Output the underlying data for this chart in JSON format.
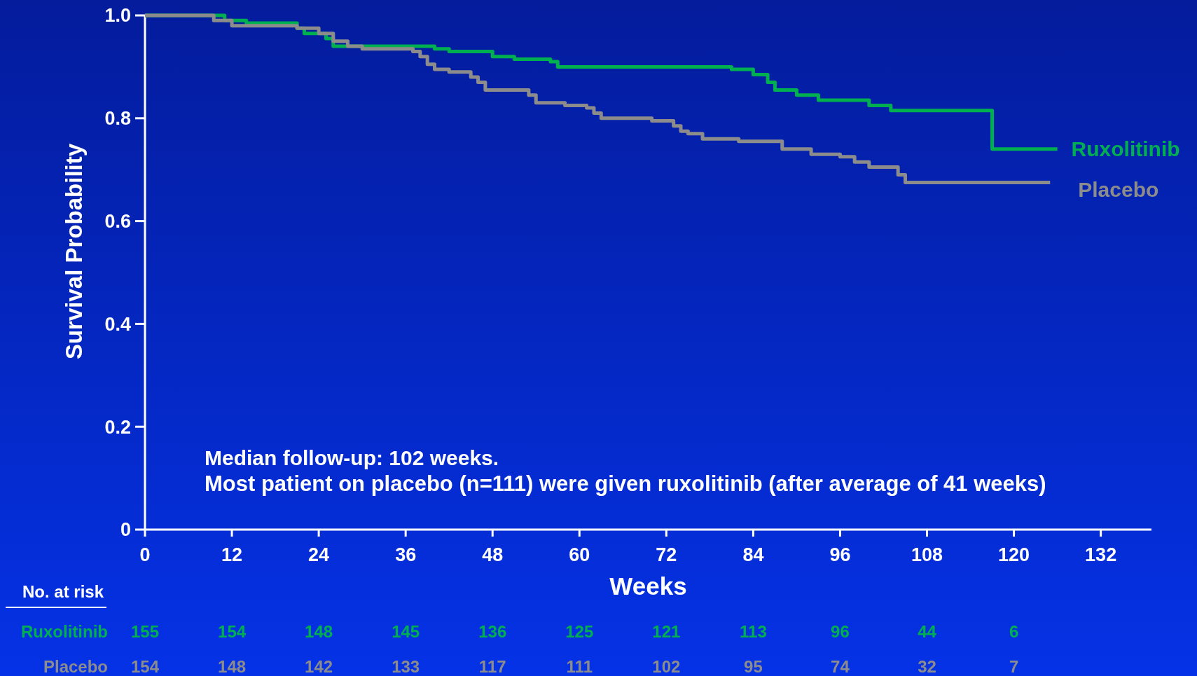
{
  "chart_data": {
    "type": "step",
    "xlabel": "Weeks",
    "ylabel": "Survival Probability",
    "xlim": [
      0,
      139
    ],
    "xticks": [
      0,
      12,
      24,
      36,
      48,
      60,
      72,
      84,
      96,
      108,
      120,
      132
    ],
    "ylim": [
      0,
      1
    ],
    "yticks": [
      {
        "value": 0,
        "label": "0"
      },
      0.2,
      0.4,
      0.6,
      0.8,
      {
        "value": 1,
        "label": "1.0"
      }
    ],
    "grid": false,
    "marker": "none",
    "line_style": "solid",
    "series": [
      {
        "name": "Ruxolitinib",
        "color": "#00b050",
        "x": [
          0,
          11,
          14,
          21,
          22,
          25,
          26,
          40,
          42,
          48,
          51,
          56,
          57,
          81,
          84,
          86,
          87,
          90,
          93,
          100,
          103,
          117,
          126
        ],
        "values": [
          1,
          0.99,
          0.985,
          0.975,
          0.965,
          0.955,
          0.94,
          0.935,
          0.93,
          0.92,
          0.915,
          0.91,
          0.9,
          0.895,
          0.885,
          0.87,
          0.855,
          0.845,
          0.835,
          0.825,
          0.815,
          0.74,
          0.74
        ]
      },
      {
        "name": "Placebo",
        "color": "#8c8c8c",
        "x": [
          0,
          9.5,
          12,
          21,
          24,
          26,
          28,
          30,
          37,
          38,
          39,
          40,
          42,
          45,
          46,
          47,
          53,
          54,
          58,
          61,
          62,
          63,
          70,
          73,
          74,
          75,
          77,
          82,
          88,
          92,
          96,
          98,
          100,
          104,
          105,
          125
        ],
        "values": [
          1,
          0.99,
          0.98,
          0.975,
          0.965,
          0.95,
          0.94,
          0.935,
          0.93,
          0.92,
          0.905,
          0.895,
          0.89,
          0.88,
          0.87,
          0.855,
          0.845,
          0.83,
          0.825,
          0.82,
          0.81,
          0.8,
          0.795,
          0.785,
          0.775,
          0.77,
          0.76,
          0.755,
          0.74,
          0.73,
          0.725,
          0.715,
          0.705,
          0.69,
          0.675,
          0.675
        ]
      }
    ],
    "annotations": [
      "Median follow-up: 102 weeks.",
      "Most patient on placebo (n=111) were given ruxolitinib (after average of 41 weeks)",
      "No. at risk",
      "Ruxolitinib",
      "155",
      "154",
      "148",
      "145",
      "136",
      "125",
      "121",
      "113",
      "96",
      "44",
      "6",
      "Placebo",
      "154",
      "148",
      "142",
      "133",
      "117",
      "111",
      "102",
      "95",
      "74",
      "32",
      "7"
    ]
  }
}
